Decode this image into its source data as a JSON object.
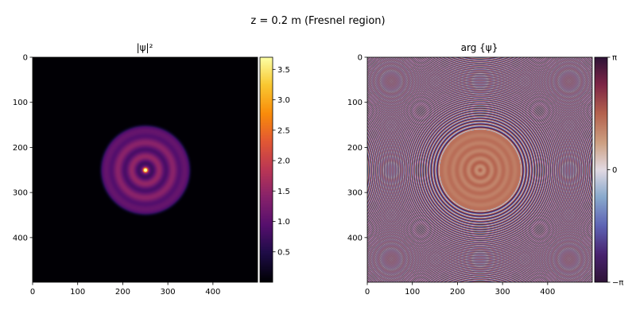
{
  "figure": {
    "suptitle": "z = 0.2 m  (Fresnel region)"
  },
  "chart_data": [
    {
      "type": "heatmap",
      "title": "|ψ|²",
      "quantity": "intensity",
      "colormap": "inferno",
      "grid_size": 500,
      "x_ticks": [
        0,
        100,
        200,
        300,
        400
      ],
      "y_ticks": [
        0,
        100,
        200,
        300,
        400
      ],
      "xlim": [
        0,
        499
      ],
      "ylim": [
        499,
        0
      ],
      "colorbar": {
        "range": [
          0.0,
          3.7
        ],
        "ticks": [
          0.5,
          1.0,
          1.5,
          2.0,
          2.5,
          3.0,
          3.5
        ],
        "tick_labels": [
          "0.5",
          "1.0",
          "1.5",
          "2.0",
          "2.5",
          "3.0",
          "3.5"
        ]
      },
      "center": [
        250,
        250
      ],
      "aperture_radius": 95,
      "peak_value": 3.7
    },
    {
      "type": "heatmap",
      "title": "arg {ψ}",
      "quantity": "phase",
      "colormap": "twilight_shifted",
      "grid_size": 500,
      "x_ticks": [
        0,
        100,
        200,
        300,
        400
      ],
      "y_ticks": [
        0,
        100,
        200,
        300,
        400
      ],
      "xlim": [
        0,
        499
      ],
      "ylim": [
        499,
        0
      ],
      "colorbar": {
        "range": [
          -3.14159,
          3.14159
        ],
        "ticks": [
          3.14159,
          0,
          -3.14159
        ],
        "tick_labels": [
          "π",
          "0",
          "−π"
        ]
      },
      "center": [
        250,
        250
      ],
      "aperture_radius": 95
    }
  ]
}
